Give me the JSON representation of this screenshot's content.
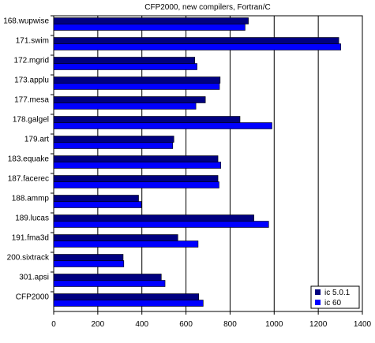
{
  "chart_data": {
    "type": "bar",
    "orientation": "horizontal",
    "title": "CFP2000, new compilers, Fortran/C",
    "categories": [
      "168.wupwise",
      "171.swim",
      "172.mgrid",
      "173.applu",
      "177.mesa",
      "178.galgel",
      "179.art",
      "183.equake",
      "187.facerec",
      "188.ammp",
      "189.lucas",
      "191.fma3d",
      "200.sixtrack",
      "301.apsi",
      "CFP2000"
    ],
    "series": [
      {
        "name": "ic 5.0.1",
        "color": "#000080",
        "values": [
          883,
          1293,
          640,
          755,
          688,
          845,
          545,
          745,
          745,
          385,
          908,
          563,
          315,
          488,
          658
        ]
      },
      {
        "name": "ic 60",
        "color": "#0000ff",
        "values": [
          868,
          1302,
          650,
          752,
          645,
          990,
          540,
          758,
          750,
          398,
          975,
          655,
          318,
          505,
          678
        ]
      }
    ],
    "xlim": [
      0,
      1400
    ],
    "xticks": [
      0,
      200,
      400,
      600,
      800,
      1000,
      1200,
      1400
    ],
    "grid": "vertical",
    "legend_position": "bottom-right"
  }
}
